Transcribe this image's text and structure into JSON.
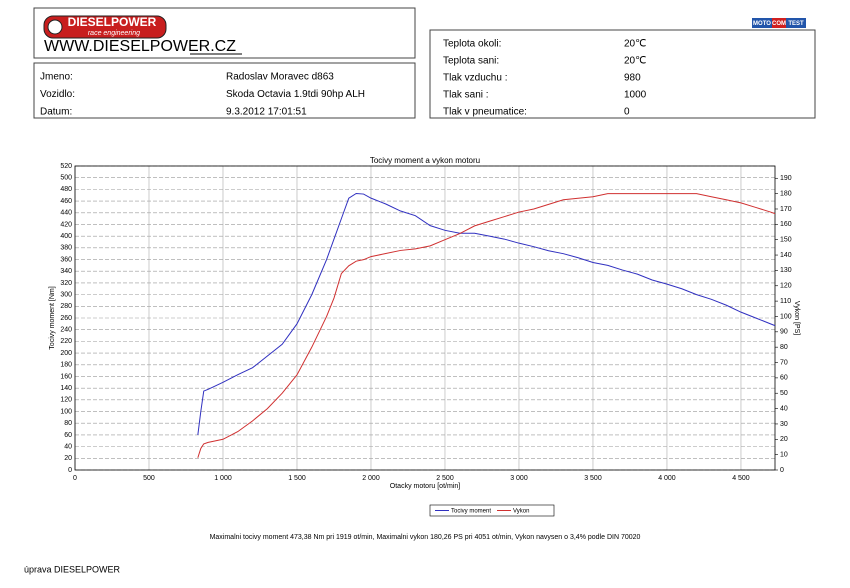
{
  "header": {
    "logo": "DIESELPOWER",
    "logo_sub": "race engineering",
    "website": "WWW.DIESELPOWER.CZ",
    "badge": [
      "MOTO",
      "COM",
      "TEST"
    ],
    "info_left": [
      [
        "Jmeno:",
        "Radoslav Moravec d863"
      ],
      [
        "Vozidlo:",
        "Skoda Octavia 1.9tdi 90hp ALH"
      ],
      [
        "Datum:",
        "9.3.2012 17:01:51"
      ]
    ],
    "info_right": [
      [
        "Teplota okoli:",
        "20℃"
      ],
      [
        "Teplota sani:",
        "20℃"
      ],
      [
        "Tlak vzduchu :",
        "980"
      ],
      [
        "Tlak sani :",
        "1000"
      ],
      [
        "Tlak v pneumatice:",
        "0"
      ]
    ]
  },
  "chart_data": {
    "type": "line",
    "title": "Tocivy moment a vykon motoru",
    "x_label": "Otacky motoru [ot/min]",
    "y_label": "Tocivy moment [Nm]",
    "y2_label": "Vykon [PS]",
    "x": [
      830,
      850,
      870,
      900,
      1000,
      1100,
      1200,
      1300,
      1400,
      1500,
      1600,
      1700,
      1750,
      1800,
      1850,
      1900,
      1950,
      2000,
      2100,
      2200,
      2300,
      2400,
      2500,
      2600,
      2700,
      2800,
      2900,
      3000,
      3100,
      3200,
      3300,
      3400,
      3500,
      3600,
      3700,
      3800,
      3900,
      4000,
      4100,
      4200,
      4300,
      4400,
      4500,
      4600,
      4700,
      4730
    ],
    "series": [
      {
        "name": "Tocivy moment",
        "color": "#3030c0",
        "values": [
          60,
          100,
          135,
          138,
          150,
          163,
          175,
          195,
          215,
          250,
          300,
          360,
          395,
          430,
          465,
          473,
          472,
          465,
          455,
          443,
          435,
          418,
          410,
          405,
          405,
          400,
          395,
          388,
          382,
          375,
          370,
          363,
          355,
          350,
          342,
          335,
          325,
          318,
          310,
          300,
          292,
          282,
          270,
          260,
          250,
          247
        ]
      },
      {
        "name": "Vykon",
        "color": "#d03030",
        "axis": "y2",
        "values": [
          8,
          14,
          17,
          18,
          20,
          25,
          32,
          40,
          50,
          62,
          80,
          100,
          112,
          128,
          133,
          136,
          137,
          139,
          141,
          143,
          144,
          146,
          150,
          154,
          159,
          162,
          165,
          168,
          170,
          173,
          176,
          177,
          178,
          180,
          180,
          180,
          180,
          180,
          180,
          180,
          178,
          176,
          174,
          171,
          168,
          167
        ]
      }
    ],
    "xlim": [
      0,
      4730
    ],
    "xticks": [
      0,
      500,
      {
        "value": 1000,
        "label": "1 000"
      },
      {
        "value": 1500,
        "label": "1 500"
      },
      {
        "value": 2000,
        "label": "2 000"
      },
      {
        "value": 2500,
        "label": "2 500"
      },
      {
        "value": 3000,
        "label": "3 000"
      },
      {
        "value": 3500,
        "label": "3 500"
      },
      {
        "value": 4000,
        "label": "4 000"
      },
      {
        "value": 4500,
        "label": "4 500"
      }
    ],
    "ylim": [
      0,
      520
    ],
    "yticks": [
      0,
      20,
      40,
      60,
      80,
      100,
      120,
      140,
      160,
      180,
      200,
      220,
      240,
      260,
      280,
      300,
      320,
      340,
      360,
      380,
      400,
      420,
      440,
      460,
      480,
      500,
      520
    ],
    "y2lim": [
      0,
      198
    ],
    "y2ticks": [
      0,
      10,
      20,
      30,
      40,
      50,
      60,
      70,
      80,
      90,
      100,
      110,
      120,
      130,
      140,
      150,
      160,
      170,
      180,
      190
    ],
    "grid": true
  },
  "footer": {
    "summary": "Maximalni tocivy moment 473,38 Nm pri 1919 ot/min,  Maximalni vykon 180,26 PS pri 4051 ot/min,  Vykon navysen o 3,4% podle DIN 70020",
    "note": "úprava DIESELPOWER"
  }
}
